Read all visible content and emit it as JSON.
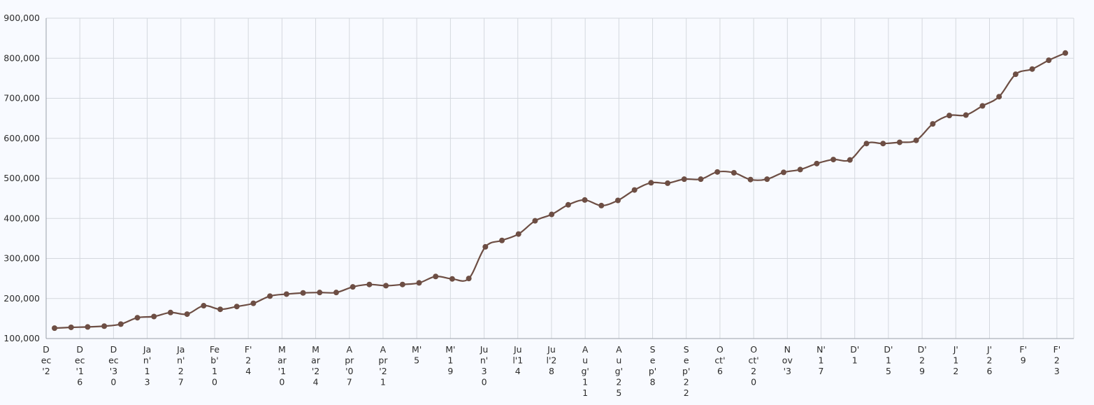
{
  "chart_data": {
    "type": "line",
    "title": "",
    "xlabel": "",
    "ylabel": "",
    "ylim": [
      100000,
      900000
    ],
    "y_ticks": [
      100000,
      200000,
      300000,
      400000,
      500000,
      600000,
      700000,
      800000,
      900000
    ],
    "y_tick_labels": [
      "100,000",
      "200,000",
      "300,000",
      "400,000",
      "500,000",
      "600,000",
      "700,000",
      "800,000",
      "900,000"
    ],
    "grid": true,
    "legend": "none",
    "line_color": "#6d4e44",
    "x_tick_labels": [
      [
        "D",
        "ec",
        "'2"
      ],
      [
        "D",
        "ec",
        "'1",
        "6"
      ],
      [
        "D",
        "ec",
        "'3",
        "0"
      ],
      [
        "Ja",
        "n'",
        "1",
        "3"
      ],
      [
        "Ja",
        "n'",
        "2",
        "7"
      ],
      [
        "Fe",
        "b'",
        "1",
        "0"
      ],
      [
        "F'",
        "2",
        "4"
      ],
      [
        "M",
        "ar",
        "'1",
        "0"
      ],
      [
        "M",
        "ar",
        "'2",
        "4"
      ],
      [
        "A",
        "pr",
        "'0",
        "7"
      ],
      [
        "A",
        "pr",
        "'2",
        "1"
      ],
      [
        "M'",
        "5"
      ],
      [
        "M'",
        "1",
        "9"
      ],
      [
        "Ju",
        "n'",
        "3",
        "0"
      ],
      [
        "Ju",
        "l'1",
        "4"
      ],
      [
        "Ju",
        "l'2",
        "8"
      ],
      [
        "A",
        "u",
        "g'",
        "1",
        "1"
      ],
      [
        "A",
        "u",
        "g'",
        "2",
        "5"
      ],
      [
        "S",
        "e",
        "p'",
        "8"
      ],
      [
        "S",
        "e",
        "p'",
        "2",
        "2"
      ],
      [
        "O",
        "ct'",
        "6"
      ],
      [
        "O",
        "ct'",
        "2",
        "0"
      ],
      [
        "N",
        "ov",
        "'3"
      ],
      [
        "N'",
        "1",
        "7"
      ],
      [
        "D'",
        "1"
      ],
      [
        "D'",
        "1",
        "5"
      ],
      [
        "D'",
        "2",
        "9"
      ],
      [
        "J'",
        "1",
        "2"
      ],
      [
        "J'",
        "2",
        "6"
      ],
      [
        "F'",
        "9"
      ],
      [
        "F'",
        "2",
        "3"
      ]
    ],
    "x_tick_positions": [
      0,
      2,
      4,
      6,
      8,
      10,
      12,
      14,
      16,
      18,
      20,
      22,
      24,
      26,
      28,
      30,
      32,
      34,
      36,
      38,
      40,
      42,
      44,
      46,
      48,
      50,
      52,
      54,
      56,
      58,
      60
    ],
    "x_count": 62,
    "values": [
      126000,
      128000,
      129000,
      131000,
      136000,
      152000,
      155000,
      165000,
      161000,
      182000,
      173000,
      180000,
      188000,
      206000,
      211000,
      214000,
      215000,
      215000,
      229000,
      235000,
      232000,
      235000,
      239000,
      255000,
      249000,
      250000,
      329000,
      345000,
      361000,
      394000,
      410000,
      434000,
      446000,
      432000,
      445000,
      471000,
      489000,
      488000,
      498000,
      498000,
      516000,
      514000,
      497000,
      498000,
      515000,
      522000,
      537000,
      547000,
      546000,
      587000,
      587000,
      590000,
      595000,
      636000,
      657000,
      658000,
      681000,
      704000,
      760000,
      773000,
      795000,
      813000
    ]
  }
}
